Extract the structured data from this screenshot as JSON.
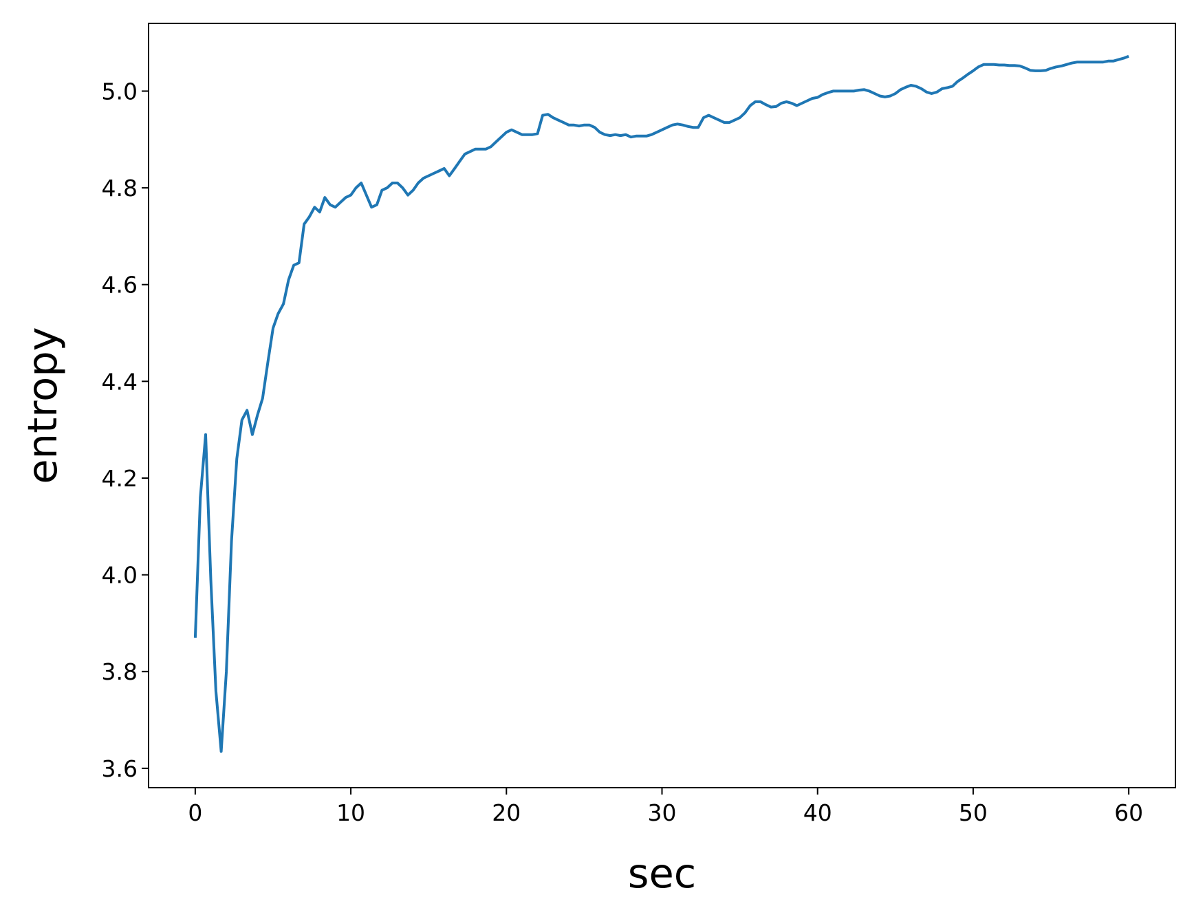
{
  "chart_data": {
    "type": "line",
    "title": "",
    "xlabel": "sec",
    "ylabel": "entropy",
    "xlim": [
      -3,
      63
    ],
    "ylim": [
      3.56,
      5.14
    ],
    "x_ticks": [
      0,
      10,
      20,
      30,
      40,
      50,
      60
    ],
    "y_ticks": [
      3.6,
      3.8,
      4.0,
      4.2,
      4.4,
      4.6,
      4.8,
      5.0
    ],
    "x_tick_labels": [
      "0",
      "10",
      "20",
      "30",
      "40",
      "50",
      "60"
    ],
    "y_tick_labels": [
      "3.6",
      "3.8",
      "4.0",
      "4.2",
      "4.4",
      "4.6",
      "4.8",
      "5.0"
    ],
    "grid": false,
    "legend": "none",
    "series": [
      {
        "color": "#1f77b4",
        "x": [
          0,
          0.33,
          0.67,
          1.0,
          1.33,
          1.67,
          2.0,
          2.33,
          2.67,
          3.0,
          3.33,
          3.67,
          4.0,
          4.33,
          4.67,
          5.0,
          5.33,
          5.67,
          6.0,
          6.33,
          6.67,
          7.0,
          7.33,
          7.67,
          8.0,
          8.33,
          8.67,
          9.0,
          9.33,
          9.67,
          10.0,
          10.33,
          10.67,
          11.0,
          11.33,
          11.67,
          12.0,
          12.33,
          12.67,
          13.0,
          13.33,
          13.67,
          14.0,
          14.33,
          14.67,
          15.0,
          15.33,
          15.67,
          16.0,
          16.33,
          16.67,
          17.0,
          17.33,
          17.67,
          18.0,
          18.33,
          18.67,
          19.0,
          19.33,
          19.67,
          20.0,
          20.33,
          20.67,
          21.0,
          21.33,
          21.67,
          22.0,
          22.33,
          22.67,
          23.0,
          23.33,
          23.67,
          24.0,
          24.33,
          24.67,
          25.0,
          25.33,
          25.67,
          26.0,
          26.33,
          26.67,
          27.0,
          27.33,
          27.67,
          28.0,
          28.33,
          28.67,
          29.0,
          29.33,
          29.67,
          30.0,
          30.33,
          30.67,
          31.0,
          31.33,
          31.67,
          32.0,
          32.33,
          32.67,
          33.0,
          33.33,
          33.67,
          34.0,
          34.33,
          34.67,
          35.0,
          35.33,
          35.67,
          36.0,
          36.33,
          36.67,
          37.0,
          37.33,
          37.67,
          38.0,
          38.33,
          38.67,
          39.0,
          39.33,
          39.67,
          40.0,
          40.33,
          40.67,
          41.0,
          41.33,
          41.67,
          42.0,
          42.33,
          42.67,
          43.0,
          43.33,
          43.67,
          44.0,
          44.33,
          44.67,
          45.0,
          45.33,
          45.67,
          46.0,
          46.33,
          46.67,
          47.0,
          47.33,
          47.67,
          48.0,
          48.33,
          48.67,
          49.0,
          49.33,
          49.67,
          50.0,
          50.33,
          50.67,
          51.0,
          51.33,
          51.67,
          52.0,
          52.33,
          52.67,
          53.0,
          53.33,
          53.67,
          54.0,
          54.33,
          54.67,
          55.0,
          55.33,
          55.67,
          56.0,
          56.33,
          56.67,
          57.0,
          57.33,
          57.67,
          58.0,
          58.33,
          58.67,
          59.0,
          59.33,
          59.67,
          60.0
        ],
        "y": [
          3.87,
          4.16,
          4.29,
          3.99,
          3.76,
          3.635,
          3.8,
          4.07,
          4.24,
          4.32,
          4.34,
          4.29,
          4.33,
          4.365,
          4.44,
          4.51,
          4.54,
          4.56,
          4.61,
          4.64,
          4.645,
          4.725,
          4.74,
          4.76,
          4.75,
          4.78,
          4.765,
          4.76,
          4.77,
          4.78,
          4.785,
          4.8,
          4.81,
          4.785,
          4.76,
          4.765,
          4.795,
          4.8,
          4.81,
          4.81,
          4.8,
          4.785,
          4.795,
          4.81,
          4.82,
          4.825,
          4.83,
          4.835,
          4.84,
          4.825,
          4.84,
          4.855,
          4.87,
          4.875,
          4.88,
          4.88,
          4.88,
          4.885,
          4.895,
          4.905,
          4.915,
          4.92,
          4.915,
          4.91,
          4.91,
          4.91,
          4.912,
          4.95,
          4.952,
          4.945,
          4.94,
          4.935,
          4.93,
          4.93,
          4.928,
          4.93,
          4.93,
          4.925,
          4.915,
          4.91,
          4.908,
          4.91,
          4.908,
          4.91,
          4.905,
          4.907,
          4.907,
          4.907,
          4.91,
          4.915,
          4.92,
          4.925,
          4.93,
          4.932,
          4.93,
          4.927,
          4.925,
          4.925,
          4.945,
          4.95,
          4.945,
          4.94,
          4.935,
          4.935,
          4.94,
          4.945,
          4.955,
          4.97,
          4.978,
          4.978,
          4.972,
          4.967,
          4.968,
          4.975,
          4.978,
          4.975,
          4.97,
          4.975,
          4.98,
          4.985,
          4.987,
          4.993,
          4.997,
          5.0,
          5.0,
          5.0,
          5.0,
          5.0,
          5.002,
          5.003,
          5.0,
          4.995,
          4.99,
          4.988,
          4.99,
          4.995,
          5.003,
          5.008,
          5.012,
          5.01,
          5.005,
          4.998,
          4.995,
          4.998,
          5.005,
          5.007,
          5.01,
          5.02,
          5.027,
          5.035,
          5.042,
          5.05,
          5.055,
          5.055,
          5.055,
          5.054,
          5.054,
          5.053,
          5.053,
          5.052,
          5.048,
          5.043,
          5.042,
          5.042,
          5.043,
          5.047,
          5.05,
          5.052,
          5.055,
          5.058,
          5.06,
          5.06,
          5.06,
          5.06,
          5.06,
          5.06,
          5.062,
          5.062,
          5.065,
          5.068,
          5.072
        ]
      }
    ]
  }
}
